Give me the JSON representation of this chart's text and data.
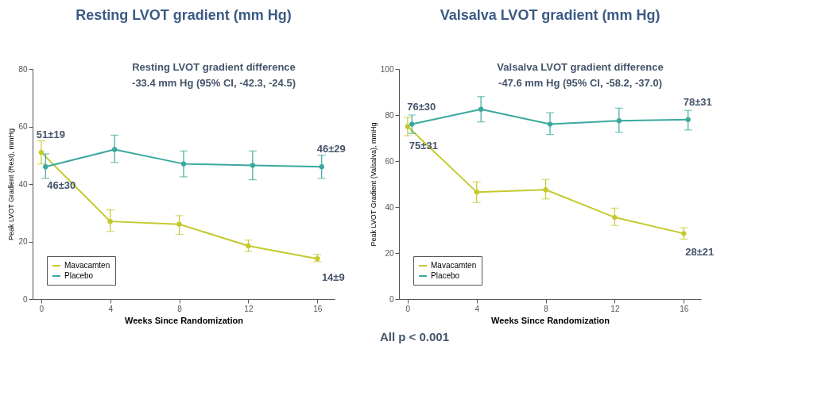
{
  "chart_data": [
    {
      "type": "line",
      "title": "Resting LVOT gradient (mm Hg)",
      "xlabel": "Weeks Since Randomization",
      "ylabel": "Peak LVOT Gradient (Rest), mmHg",
      "xlim": [
        -0.5,
        17
      ],
      "xticks": [
        0,
        4,
        8,
        12,
        16
      ],
      "ylim": [
        0,
        80
      ],
      "yticks": [
        0,
        20,
        40,
        60,
        80
      ],
      "grid": false,
      "legend": "bottom left",
      "marker": "circle",
      "line_style": "solid",
      "series": [
        {
          "name": "Mavacamten",
          "color": "#c5c92c",
          "x": [
            0,
            4,
            8,
            12,
            16
          ],
          "values": [
            51,
            27,
            26,
            18.5,
            14
          ],
          "errors": [
            [
              47,
              55
            ],
            [
              23.5,
              31
            ],
            [
              22.5,
              29
            ],
            [
              16.5,
              20.5
            ],
            [
              13,
              15.5
            ]
          ],
          "value_labels": [
            "51±19",
            null,
            null,
            null,
            "14±9"
          ]
        },
        {
          "name": "Placebo",
          "color": "#3aa89e",
          "x": [
            0.25,
            4.25,
            8.25,
            12.25,
            16.25
          ],
          "values": [
            46,
            52,
            47,
            46.5,
            46
          ],
          "errors": [
            [
              42,
              50.5
            ],
            [
              47.5,
              57
            ],
            [
              42.5,
              51.5
            ],
            [
              41.5,
              51.5
            ],
            [
              42,
              50
            ]
          ],
          "value_labels": [
            "46±30",
            null,
            null,
            null,
            "46±29"
          ]
        }
      ],
      "annotations": [
        "Resting LVOT gradient difference",
        "-33.4 mm Hg (95% CI, -42.3, -24.5)"
      ]
    },
    {
      "type": "line",
      "title": "Valsalva LVOT gradient (mm Hg)",
      "xlabel": "Weeks Since Randomization",
      "ylabel": "Peak LVOT Gradient (Valsalva), mmHg",
      "xlim": [
        -0.5,
        17
      ],
      "xticks": [
        0,
        4,
        8,
        12,
        16
      ],
      "ylim": [
        0,
        100
      ],
      "yticks": [
        0,
        20,
        40,
        60,
        80,
        100
      ],
      "grid": false,
      "legend": "bottom left",
      "marker": "circle",
      "line_style": "solid",
      "series": [
        {
          "name": "Mavacamten",
          "color": "#c5c92c",
          "x": [
            0,
            4,
            8,
            12,
            16
          ],
          "values": [
            75,
            46.5,
            47.5,
            35.5,
            28.5
          ],
          "errors": [
            [
              71,
              79
            ],
            [
              42,
              51
            ],
            [
              43.5,
              52
            ],
            [
              32,
              39.5
            ],
            [
              26,
              31
            ]
          ],
          "value_labels": [
            "75±31",
            null,
            null,
            null,
            "28±21"
          ]
        },
        {
          "name": "Placebo",
          "color": "#3aa89e",
          "x": [
            0.25,
            4.25,
            8.25,
            12.25,
            16.25
          ],
          "values": [
            76,
            82.5,
            76,
            77.5,
            78
          ],
          "errors": [
            [
              72,
              80
            ],
            [
              77,
              88
            ],
            [
              71.5,
              81
            ],
            [
              72.5,
              83
            ],
            [
              73.5,
              82
            ]
          ],
          "value_labels": [
            "76±30",
            null,
            null,
            null,
            "78±31"
          ]
        }
      ],
      "annotations": [
        "Valsalva LVOT gradient difference",
        "-47.6 mm Hg (95% CI, -58.2, -37.0)",
        "All p < 0.001"
      ]
    }
  ]
}
